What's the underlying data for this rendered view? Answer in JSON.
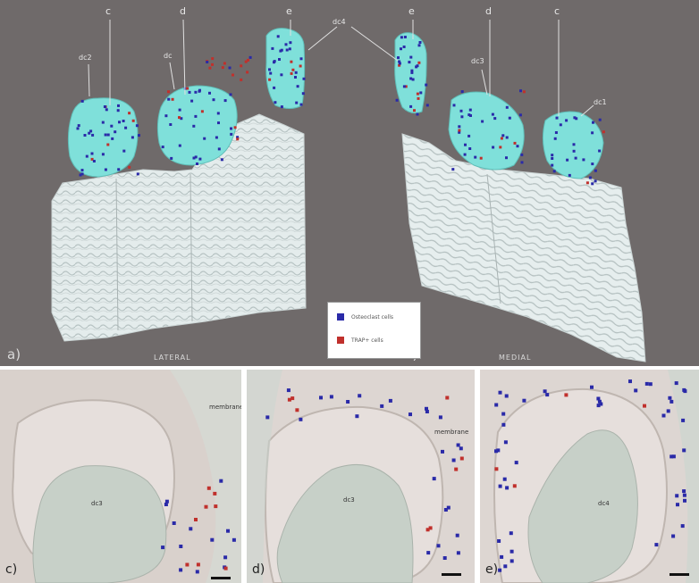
{
  "top": {
    "left_section_labels": [
      "c",
      "d",
      "e"
    ],
    "right_section_labels": [
      "e",
      "d",
      "c"
    ],
    "structure_labels": {
      "left_tooth_1": "dc2",
      "left_tooth_2": "dc",
      "center_pointer": "dc4",
      "right_tooth_1": "dc3",
      "right_tooth_2": "dc1"
    },
    "panel_a_letter": "a)",
    "panel_b_letter": "b)",
    "panel_a_caption": "LATERAL",
    "panel_b_caption": "MEDIAL",
    "legend": [
      {
        "label": "Osteoclast cells",
        "color": "#2a2aa8"
      },
      {
        "label": "TRAP+ cells",
        "color": "#c0302c"
      }
    ]
  },
  "bottom": {
    "panel_c": {
      "letter": "c)",
      "tooth_label": "dc3",
      "annotation": "membrane"
    },
    "panel_d": {
      "letter": "d)",
      "tooth_label": "dc3",
      "annotation": "membrane"
    },
    "panel_e": {
      "letter": "e)",
      "tooth_label": "dc4"
    }
  },
  "colors": {
    "background_grey": "#6f6a6a",
    "tooth_cyan": "#7fe0da",
    "bone_white": "#e4ecec",
    "stain_blue": "#2a2aa8",
    "stain_red": "#c0302c",
    "tissue_pink": "#dcd4cf"
  }
}
